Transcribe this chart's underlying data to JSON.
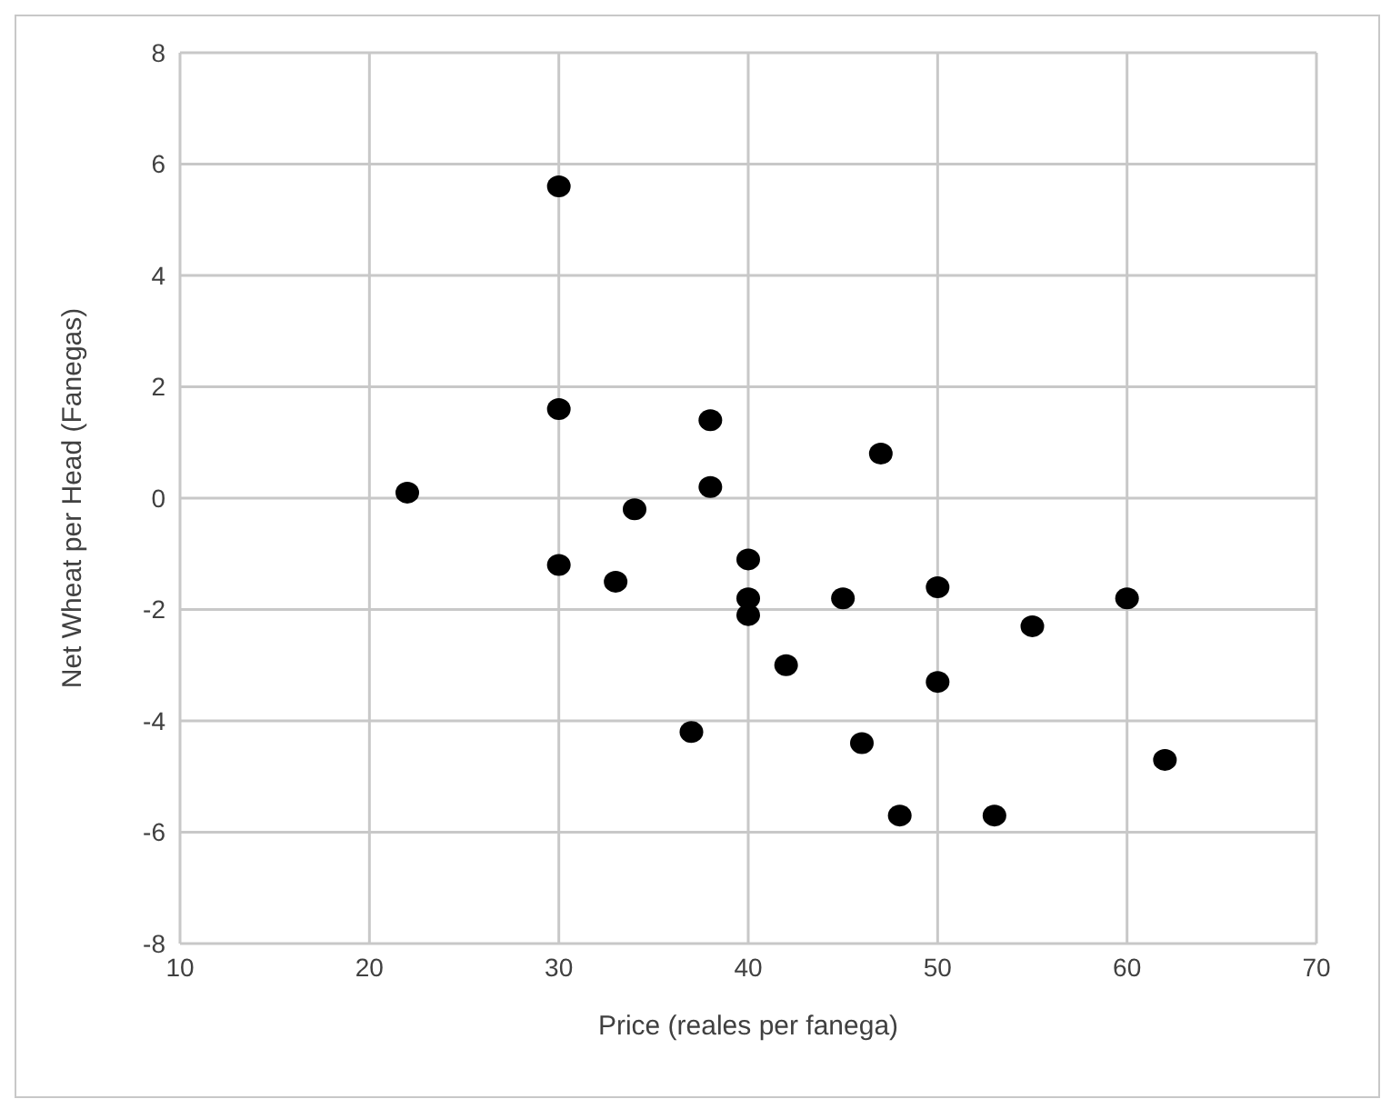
{
  "chart_data": {
    "type": "scatter",
    "xlabel": "Price (reales per fanega)",
    "ylabel": "Net Wheat per Head (Fanegas)",
    "x": [
      22,
      30,
      30,
      30,
      33,
      34,
      38,
      38,
      37,
      40,
      40,
      40,
      42,
      45,
      46,
      47,
      48,
      50,
      50,
      53,
      55,
      60,
      62
    ],
    "values": [
      0.1,
      5.6,
      1.6,
      -1.2,
      -1.5,
      -0.2,
      1.4,
      0.2,
      -4.2,
      -1.1,
      -1.8,
      -2.1,
      -3.0,
      -1.8,
      -4.4,
      0.8,
      -5.7,
      -1.6,
      -3.3,
      -5.7,
      -2.3,
      -1.8,
      -4.7
    ],
    "color": "#000000",
    "marker": "circle",
    "xlim": [
      10,
      70
    ],
    "xticks": [
      10,
      20,
      30,
      40,
      50,
      60,
      70
    ],
    "ylim": [
      -8,
      8
    ],
    "yticks": [
      -8,
      -6,
      -4,
      -2,
      0,
      2,
      4,
      6,
      8
    ],
    "grid": true,
    "legend": false
  }
}
